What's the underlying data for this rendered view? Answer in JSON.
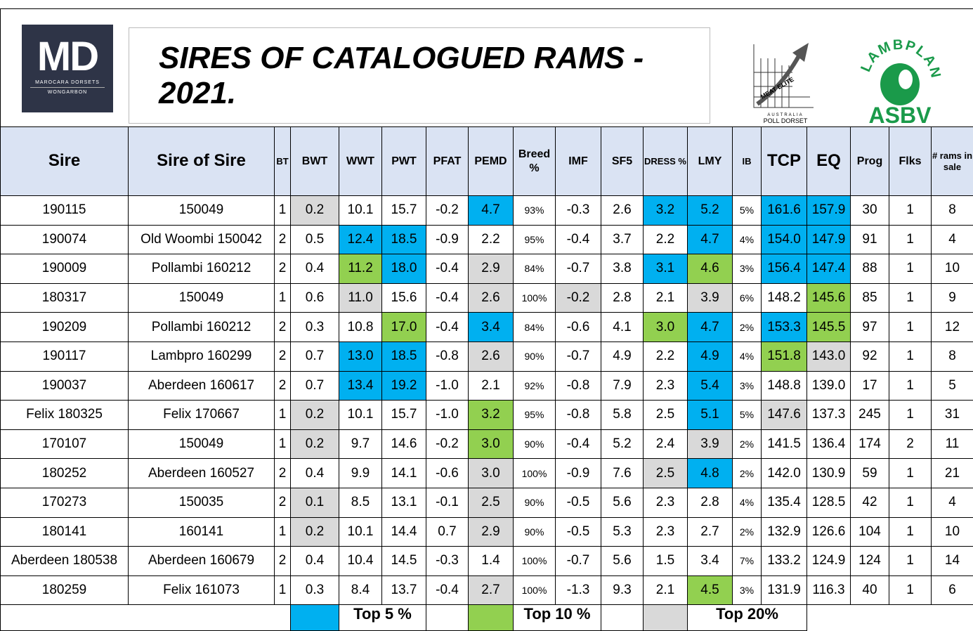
{
  "header": {
    "title": "SIRES OF CATALOGUED RAMS -  2021.",
    "logo_md": {
      "mark": "MD",
      "name": "MAROCARA DORSETS",
      "place": "WONGARBON"
    },
    "logo_meat": {
      "mark": "MEAT ELITE",
      "country": "AUSTRALIA",
      "breed": "POLL DORSET"
    },
    "logo_lambplan": {
      "mark": "LAMBPLAN",
      "sub": "ASBV"
    }
  },
  "table": {
    "columns": [
      "Sire",
      "Sire of Sire",
      "BT",
      "BWT",
      "WWT",
      "PWT",
      "PFAT",
      "PEMD",
      "Breed %",
      "IMF",
      "SF5",
      "DRESS %",
      "LMY",
      "IB",
      "TCP",
      "EQ",
      "Prog",
      "Flks",
      "# rams in sale"
    ],
    "rows": [
      {
        "cells": [
          "190115",
          "150049",
          "1",
          "0.2",
          "10.1",
          "15.7",
          "-0.2",
          "4.7",
          "93%",
          "-0.3",
          "2.6",
          "3.2",
          "5.2",
          "5%",
          "161.6",
          "157.9",
          "30",
          "1",
          "8"
        ],
        "colors": [
          null,
          null,
          null,
          "#d9d9d9",
          null,
          null,
          null,
          "#00b0f0",
          null,
          null,
          null,
          "#00b0f0",
          "#00b0f0",
          null,
          "#00b0f0",
          "#00b0f0",
          null,
          null,
          null
        ]
      },
      {
        "cells": [
          "190074",
          "Old Woombi 150042",
          "2",
          "0.5",
          "12.4",
          "18.5",
          "-0.9",
          "2.2",
          "95%",
          "-0.4",
          "3.7",
          "2.2",
          "4.7",
          "4%",
          "154.0",
          "147.9",
          "91",
          "1",
          "4"
        ],
        "colors": [
          null,
          null,
          null,
          null,
          "#00b0f0",
          "#00b0f0",
          null,
          null,
          null,
          null,
          null,
          null,
          "#00b0f0",
          null,
          "#00b0f0",
          "#00b0f0",
          null,
          null,
          null
        ]
      },
      {
        "cells": [
          "190009",
          "Pollambi 160212",
          "2",
          "0.4",
          "11.2",
          "18.0",
          "-0.4",
          "2.9",
          "84%",
          "-0.7",
          "3.8",
          "3.1",
          "4.6",
          "3%",
          "156.4",
          "147.4",
          "88",
          "1",
          "10"
        ],
        "colors": [
          null,
          null,
          null,
          null,
          "#92d050",
          "#00b0f0",
          null,
          "#d9d9d9",
          null,
          null,
          null,
          "#00b0f0",
          "#92d050",
          null,
          "#00b0f0",
          "#00b0f0",
          null,
          null,
          null
        ]
      },
      {
        "cells": [
          "180317",
          "150049",
          "1",
          "0.6",
          "11.0",
          "15.6",
          "-0.4",
          "2.6",
          "100%",
          "-0.2",
          "2.8",
          "2.1",
          "3.9",
          "6%",
          "148.2",
          "145.6",
          "85",
          "1",
          "9"
        ],
        "colors": [
          null,
          null,
          null,
          null,
          "#d9d9d9",
          null,
          null,
          "#d9d9d9",
          null,
          "#d9d9d9",
          null,
          null,
          "#d9d9d9",
          null,
          null,
          "#92d050",
          null,
          null,
          null
        ]
      },
      {
        "cells": [
          "190209",
          "Pollambi 160212",
          "2",
          "0.3",
          "10.8",
          "17.0",
          "-0.4",
          "3.4",
          "84%",
          "-0.6",
          "4.1",
          "3.0",
          "4.7",
          "2%",
          "153.3",
          "145.5",
          "97",
          "1",
          "12"
        ],
        "colors": [
          null,
          null,
          null,
          null,
          null,
          "#92d050",
          null,
          "#00b0f0",
          null,
          null,
          null,
          "#92d050",
          "#00b0f0",
          null,
          "#00b0f0",
          "#92d050",
          null,
          null,
          null
        ]
      },
      {
        "cells": [
          "190117",
          "Lambpro 160299",
          "2",
          "0.7",
          "13.0",
          "18.5",
          "-0.8",
          "2.6",
          "90%",
          "-0.7",
          "4.9",
          "2.2",
          "4.9",
          "4%",
          "151.8",
          "143.0",
          "92",
          "1",
          "8"
        ],
        "colors": [
          null,
          null,
          null,
          null,
          "#00b0f0",
          "#00b0f0",
          null,
          "#d9d9d9",
          null,
          null,
          null,
          null,
          "#00b0f0",
          null,
          "#92d050",
          "#d9d9d9",
          null,
          null,
          null
        ]
      },
      {
        "cells": [
          "190037",
          "Aberdeen 160617",
          "2",
          "0.7",
          "13.4",
          "19.2",
          "-1.0",
          "2.1",
          "92%",
          "-0.8",
          "7.9",
          "2.3",
          "5.4",
          "3%",
          "148.8",
          "139.0",
          "17",
          "1",
          "5"
        ],
        "colors": [
          null,
          null,
          null,
          null,
          "#00b0f0",
          "#00b0f0",
          null,
          null,
          null,
          null,
          null,
          null,
          "#00b0f0",
          null,
          null,
          null,
          null,
          null,
          null
        ]
      },
      {
        "cells": [
          "Felix 180325",
          "Felix 170667",
          "1",
          "0.2",
          "10.1",
          "15.7",
          "-1.0",
          "3.2",
          "95%",
          "-0.8",
          "5.8",
          "2.5",
          "5.1",
          "5%",
          "147.6",
          "137.3",
          "245",
          "1",
          "31"
        ],
        "colors": [
          null,
          null,
          null,
          "#d9d9d9",
          null,
          null,
          null,
          "#92d050",
          null,
          null,
          null,
          null,
          "#00b0f0",
          null,
          "#d9d9d9",
          null,
          null,
          null,
          null
        ]
      },
      {
        "cells": [
          "170107",
          "150049",
          "1",
          "0.2",
          "9.7",
          "14.6",
          "-0.2",
          "3.0",
          "90%",
          "-0.4",
          "5.2",
          "2.4",
          "3.9",
          "2%",
          "141.5",
          "136.4",
          "174",
          "2",
          "11"
        ],
        "colors": [
          null,
          null,
          null,
          "#d9d9d9",
          null,
          null,
          null,
          "#92d050",
          null,
          null,
          null,
          null,
          "#d9d9d9",
          null,
          null,
          null,
          null,
          null,
          null
        ]
      },
      {
        "cells": [
          "180252",
          "Aberdeen 160527",
          "2",
          "0.4",
          "9.9",
          "14.1",
          "-0.6",
          "3.0",
          "100%",
          "-0.9",
          "7.6",
          "2.5",
          "4.8",
          "2%",
          "142.0",
          "130.9",
          "59",
          "1",
          "21"
        ],
        "colors": [
          null,
          null,
          null,
          null,
          null,
          null,
          null,
          "#d9d9d9",
          null,
          null,
          null,
          "#d9d9d9",
          "#00b0f0",
          null,
          null,
          null,
          null,
          null,
          null
        ]
      },
      {
        "cells": [
          "170273",
          "150035",
          "2",
          "0.1",
          "8.5",
          "13.1",
          "-0.1",
          "2.5",
          "90%",
          "-0.5",
          "5.6",
          "2.3",
          "2.8",
          "4%",
          "135.4",
          "128.5",
          "42",
          "1",
          "4"
        ],
        "colors": [
          null,
          null,
          null,
          "#d9d9d9",
          null,
          null,
          null,
          "#d9d9d9",
          null,
          null,
          null,
          null,
          null,
          null,
          null,
          null,
          null,
          null,
          null
        ]
      },
      {
        "cells": [
          "180141",
          "160141",
          "1",
          "0.2",
          "10.1",
          "14.4",
          "0.7",
          "2.9",
          "90%",
          "-0.5",
          "5.3",
          "2.3",
          "2.7",
          "2%",
          "132.9",
          "126.6",
          "104",
          "1",
          "10"
        ],
        "colors": [
          null,
          null,
          null,
          "#d9d9d9",
          null,
          null,
          null,
          "#d9d9d9",
          null,
          null,
          null,
          null,
          null,
          null,
          null,
          null,
          null,
          null,
          null
        ]
      },
      {
        "cells": [
          "Aberdeen 180538",
          "Aberdeen 160679",
          "2",
          "0.4",
          "10.4",
          "14.5",
          "-0.3",
          "1.4",
          "100%",
          "-0.7",
          "5.6",
          "1.5",
          "3.4",
          "7%",
          "133.2",
          "124.9",
          "124",
          "1",
          "14"
        ],
        "colors": [
          null,
          null,
          null,
          null,
          null,
          null,
          null,
          null,
          null,
          null,
          null,
          null,
          null,
          null,
          null,
          null,
          null,
          null,
          null
        ]
      },
      {
        "cells": [
          "180259",
          "Felix 161073",
          "1",
          "0.3",
          "8.4",
          "13.7",
          "-0.4",
          "2.7",
          "100%",
          "-1.3",
          "9.3",
          "2.1",
          "4.5",
          "3%",
          "131.9",
          "116.3",
          "40",
          "1",
          "6"
        ],
        "colors": [
          null,
          null,
          null,
          null,
          null,
          null,
          null,
          "#d9d9d9",
          null,
          null,
          null,
          null,
          "#92d050",
          null,
          null,
          null,
          null,
          null,
          null
        ]
      }
    ]
  },
  "legend": [
    {
      "color": "#00b0f0",
      "label": "Top 5 %"
    },
    {
      "color": "#92d050",
      "label": "Top 10 %"
    },
    {
      "color": "#d9d9d9",
      "label": "Top 20%"
    }
  ]
}
